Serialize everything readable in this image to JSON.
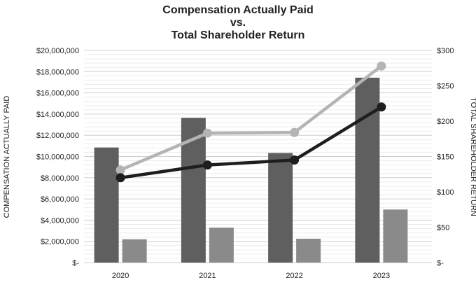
{
  "chart_data": {
    "type": "bar",
    "title_lines": [
      "Compensation Actually Paid",
      "vs.",
      "Total Shareholder Return"
    ],
    "ylabel": "COMPENSATION ACTUALLY PAID",
    "y2label": "TOTAL SHAREHOLDER RETURN",
    "categories": [
      "2020",
      "2021",
      "2022",
      "2023"
    ],
    "ylim": [
      0,
      20000000
    ],
    "y2lim": [
      0,
      300
    ],
    "yticks": [
      "$-",
      "$2,000,000",
      "$4,000,000",
      "$6,000,000",
      "$8,000,000",
      "$10,000,000",
      "$12,000,000",
      "$14,000,000",
      "$16,000,000",
      "$18,000,000",
      "$20,000,000"
    ],
    "y2ticks": [
      "$-",
      "$50",
      "$100",
      "$150",
      "$200",
      "$250",
      "$300"
    ],
    "grid": true,
    "bar_series": [
      {
        "values": [
          10850000,
          13650000,
          10330000,
          17430000
        ],
        "color": "#5f5f5f",
        "axis": "left"
      },
      {
        "values": [
          2200000,
          3300000,
          2250000,
          5000000
        ],
        "color": "#8a8a8a",
        "axis": "left"
      }
    ],
    "line_series": [
      {
        "values": [
          131,
          183,
          184,
          278
        ],
        "color": "#b4b4b4",
        "axis": "right"
      },
      {
        "values": [
          120,
          138,
          145,
          220
        ],
        "color": "#1e1e1e",
        "axis": "right"
      }
    ]
  }
}
